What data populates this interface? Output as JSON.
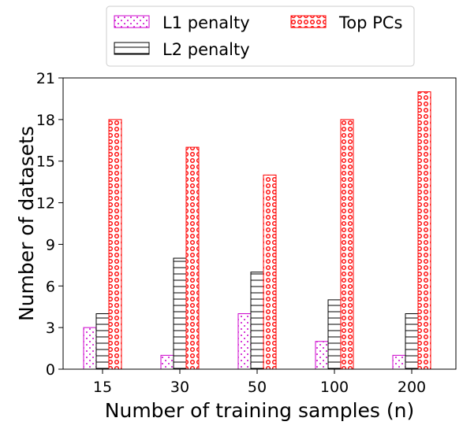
{
  "chart_data": {
    "type": "bar",
    "title": "",
    "xlabel": "Number of training samples (n)",
    "ylabel": "Number of datasets",
    "categories": [
      "15",
      "30",
      "50",
      "100",
      "200"
    ],
    "series": [
      {
        "name": "L1 penalty",
        "values": [
          3,
          1,
          4,
          2,
          1
        ],
        "edge_color": "#cc00cc",
        "pattern": "dots"
      },
      {
        "name": "L2 penalty",
        "values": [
          4,
          8,
          7,
          5,
          4
        ],
        "edge_color": "#000000",
        "pattern": "horizontal-lines"
      },
      {
        "name": "Top PCs",
        "values": [
          18,
          16,
          14,
          18,
          20
        ],
        "edge_color": "#ff0000",
        "pattern": "circles"
      }
    ],
    "ylim": [
      0,
      21
    ],
    "yticks": [
      "0",
      "3",
      "6",
      "9",
      "12",
      "15",
      "18",
      "21"
    ],
    "grid": false,
    "legend_position": "top-center"
  }
}
